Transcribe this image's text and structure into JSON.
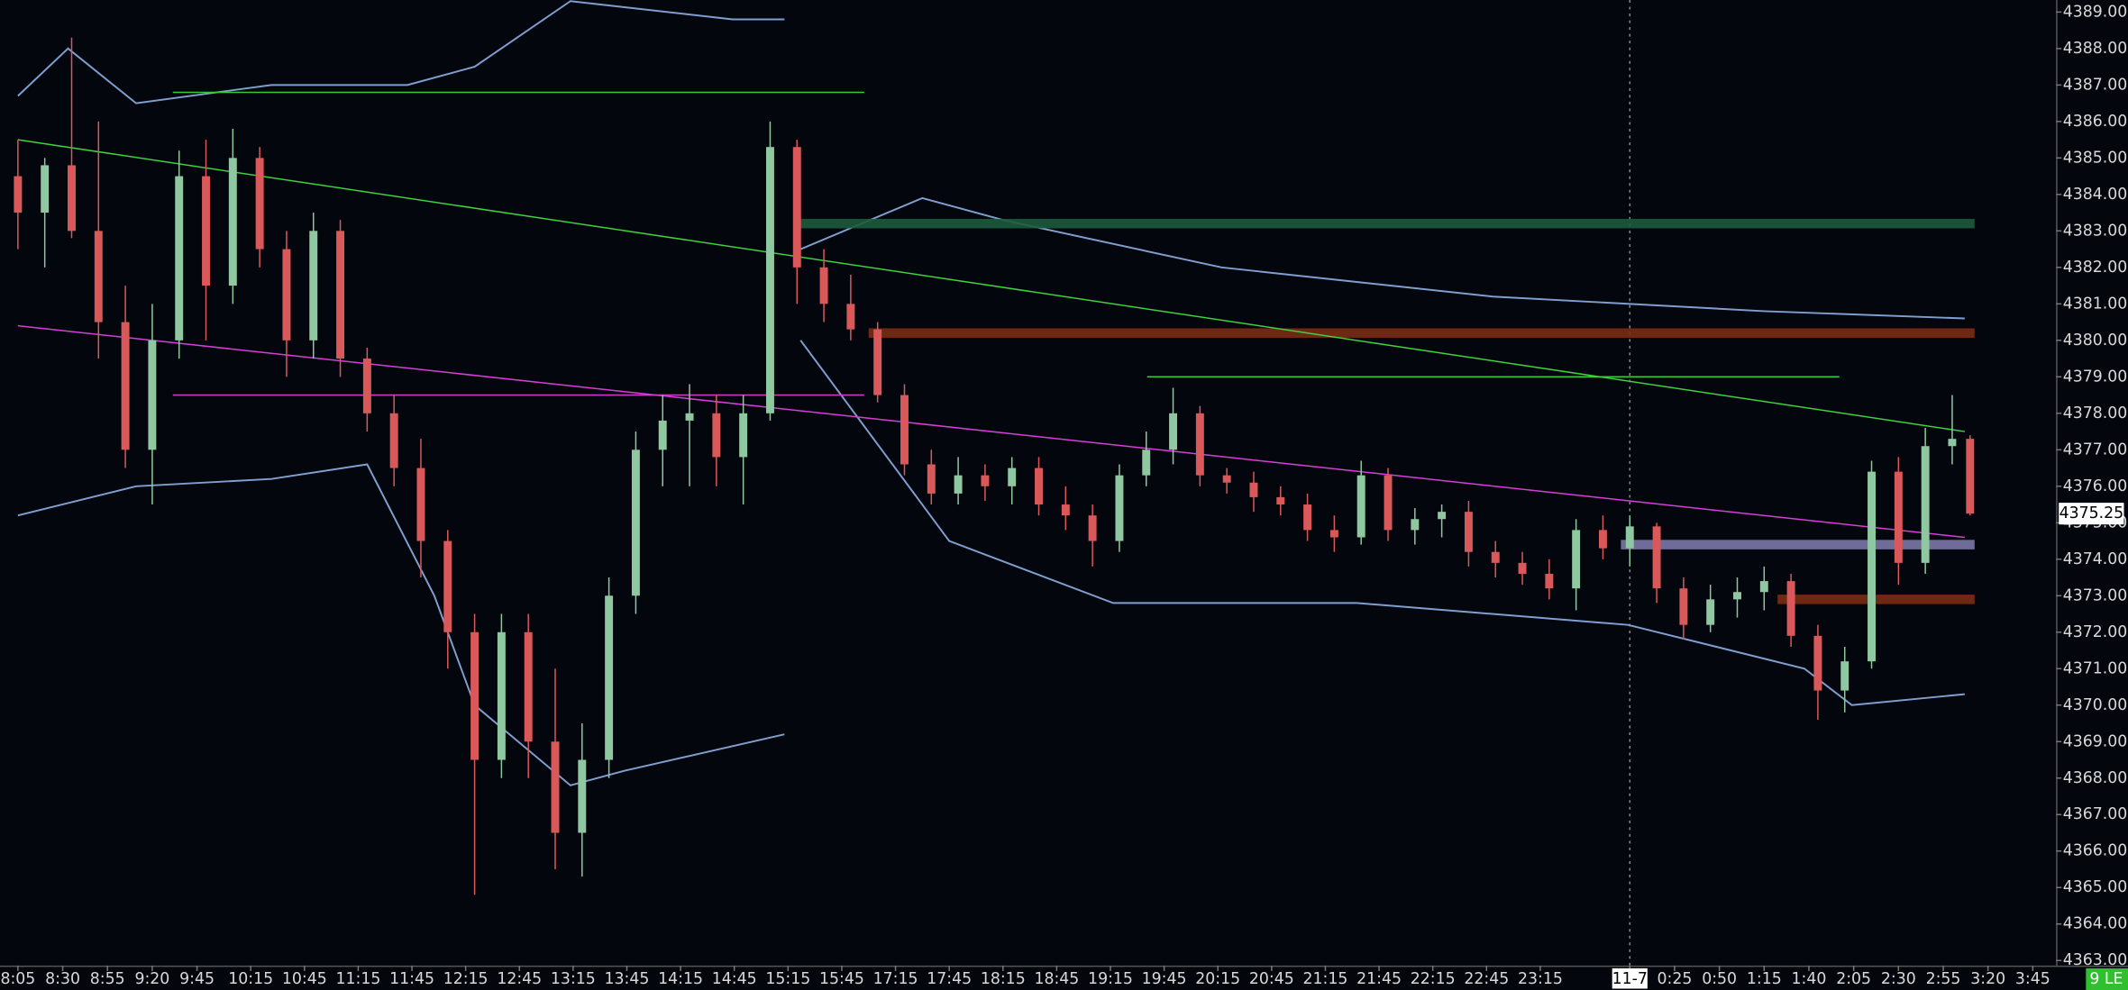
{
  "chart_data": {
    "type": "candlestick",
    "xlim": [
      -2,
      227.6
    ],
    "ylim": [
      4362.86,
      4389.33
    ],
    "xticks": [
      {
        "value": 0,
        "label": "8:05"
      },
      {
        "value": 5,
        "label": "8:30"
      },
      {
        "value": 10,
        "label": "8:55"
      },
      {
        "value": 15,
        "label": "9:20"
      },
      {
        "value": 20,
        "label": "9:45"
      },
      {
        "value": 26,
        "label": "10:15"
      },
      {
        "value": 32,
        "label": "10:45"
      },
      {
        "value": 38,
        "label": "11:15"
      },
      {
        "value": 44,
        "label": "11:45"
      },
      {
        "value": 50,
        "label": "12:15"
      },
      {
        "value": 56,
        "label": "12:45"
      },
      {
        "value": 62,
        "label": "13:15"
      },
      {
        "value": 68,
        "label": "13:45"
      },
      {
        "value": 74,
        "label": "14:15"
      },
      {
        "value": 80,
        "label": "14:45"
      },
      {
        "value": 86,
        "label": "15:15"
      },
      {
        "value": 92,
        "label": "15:45"
      },
      {
        "value": 98,
        "label": "17:15"
      },
      {
        "value": 104,
        "label": "17:45"
      },
      {
        "value": 110,
        "label": "18:15"
      },
      {
        "value": 116,
        "label": "18:45"
      },
      {
        "value": 122,
        "label": "19:15"
      },
      {
        "value": 128,
        "label": "19:45"
      },
      {
        "value": 134,
        "label": "20:15"
      },
      {
        "value": 140,
        "label": "20:45"
      },
      {
        "value": 146,
        "label": "21:15"
      },
      {
        "value": 152,
        "label": "21:45"
      },
      {
        "value": 158,
        "label": "22:15"
      },
      {
        "value": 164,
        "label": "22:45"
      },
      {
        "value": 170,
        "label": "23:15"
      },
      {
        "value": 180,
        "label": "11-7",
        "highlight": true
      },
      {
        "value": 185,
        "label": "0:25"
      },
      {
        "value": 190,
        "label": "0:50"
      },
      {
        "value": 195,
        "label": "1:15"
      },
      {
        "value": 200,
        "label": "1:40"
      },
      {
        "value": 205,
        "label": "2:05"
      },
      {
        "value": 210,
        "label": "2:30"
      },
      {
        "value": 215,
        "label": "2:55"
      },
      {
        "value": 220,
        "label": "3:20"
      },
      {
        "value": 225,
        "label": "3:45"
      }
    ],
    "yticks": [
      {
        "value": 4363,
        "label": "4363.00"
      },
      {
        "value": 4364,
        "label": "4364.00"
      },
      {
        "value": 4365,
        "label": "4365.00"
      },
      {
        "value": 4366,
        "label": "4366.00"
      },
      {
        "value": 4367,
        "label": "4367.00"
      },
      {
        "value": 4368,
        "label": "4368.00"
      },
      {
        "value": 4369,
        "label": "4369.00"
      },
      {
        "value": 4370,
        "label": "4370.00"
      },
      {
        "value": 4371,
        "label": "4371.00"
      },
      {
        "value": 4372,
        "label": "4372.00"
      },
      {
        "value": 4373,
        "label": "4373.00"
      },
      {
        "value": 4374,
        "label": "4374.00"
      },
      {
        "value": 4375,
        "label": "4375.00"
      },
      {
        "value": 4376,
        "label": "4376.00"
      },
      {
        "value": 4377,
        "label": "4377.00"
      },
      {
        "value": 4378,
        "label": "4378.00"
      },
      {
        "value": 4379,
        "label": "4379.00"
      },
      {
        "value": 4380,
        "label": "4380.00"
      },
      {
        "value": 4381,
        "label": "4381.00"
      },
      {
        "value": 4382,
        "label": "4382.00"
      },
      {
        "value": 4383,
        "label": "4383.00"
      },
      {
        "value": 4384,
        "label": "4384.00"
      },
      {
        "value": 4385,
        "label": "4385.00"
      },
      {
        "value": 4386,
        "label": "4386.00"
      },
      {
        "value": 4387,
        "label": "4387.00"
      },
      {
        "value": 4388,
        "label": "4388.00"
      },
      {
        "value": 4389,
        "label": "4389.00"
      }
    ],
    "x": [
      0,
      3,
      6,
      9,
      12,
      15,
      18,
      21,
      24,
      27,
      30,
      33,
      36,
      39,
      42,
      45,
      48,
      51,
      54,
      57,
      60,
      63,
      66,
      69,
      72,
      75,
      78,
      81,
      84,
      87,
      90,
      93,
      96,
      99,
      102,
      105,
      108,
      111,
      114,
      117,
      120,
      123,
      126,
      129,
      132,
      135,
      138,
      141,
      144,
      147,
      150,
      153,
      156,
      159,
      162,
      165,
      168,
      171,
      174,
      177,
      180,
      183,
      186,
      189,
      192,
      195,
      198,
      201,
      204,
      207,
      210,
      213,
      216,
      218
    ],
    "open": [
      4384.5,
      4383.5,
      4384.8,
      4383,
      4380.5,
      4377,
      4380,
      4384.5,
      4381.5,
      4385,
      4382.5,
      4380,
      4383,
      4379.5,
      4378,
      4376.5,
      4374.5,
      4372,
      4368.5,
      4372,
      4369,
      4366.5,
      4368.5,
      4373,
      4377,
      4377.8,
      4378,
      4376.8,
      4378,
      4385.3,
      4382,
      4381,
      4380.3,
      4378.5,
      4376.6,
      4375.8,
      4376.3,
      4376,
      4376.5,
      4375.5,
      4375.2,
      4374.5,
      4376.3,
      4377,
      4378,
      4376.3,
      4376.1,
      4375.7,
      4375.5,
      4374.8,
      4374.6,
      4376.3,
      4374.8,
      4375.1,
      4375.3,
      4374.2,
      4373.9,
      4373.6,
      4373.2,
      4374.8,
      4374.3,
      4374.9,
      4373.2,
      4372.2,
      4372.9,
      4373.1,
      4373.4,
      4371.9,
      4370.4,
      4371.2,
      4376.4,
      4373.9,
      4377.1,
      4377.3
    ],
    "high": [
      4385.5,
      4385,
      4388.3,
      4386,
      4381.5,
      4381,
      4385.2,
      4385.5,
      4385.8,
      4385.3,
      4383,
      4383.5,
      4383.3,
      4379.8,
      4378.5,
      4377.3,
      4374.8,
      4372.5,
      4372.5,
      4372.5,
      4371,
      4369.5,
      4373.5,
      4377.5,
      4378.5,
      4378.8,
      4378.5,
      4378.5,
      4386,
      4385.5,
      4382.5,
      4381.8,
      4380.5,
      4378.8,
      4377,
      4376.8,
      4376.6,
      4376.8,
      4376.8,
      4376,
      4375.5,
      4376.6,
      4377.5,
      4378.7,
      4378.2,
      4376.5,
      4376.4,
      4376,
      4375.8,
      4375.2,
      4376.7,
      4376.5,
      4375.4,
      4375.5,
      4375.6,
      4374.5,
      4374.2,
      4374,
      4375.1,
      4375.2,
      4375.2,
      4375,
      4373.5,
      4373.3,
      4373.5,
      4373.8,
      4373.6,
      4372.2,
      4371.6,
      4376.7,
      4376.8,
      4377.6,
      4378.5,
      4377.4
    ],
    "low": [
      4382.5,
      4382,
      4382.8,
      4379.5,
      4376.5,
      4375.5,
      4379.5,
      4380,
      4381,
      4382,
      4379,
      4379.5,
      4379,
      4377.5,
      4376,
      4373.5,
      4371,
      4364.8,
      4368,
      4368,
      4365.5,
      4365.3,
      4368,
      4372.5,
      4376,
      4376,
      4376,
      4375.5,
      4377.8,
      4381,
      4380.5,
      4380,
      4378.3,
      4376.3,
      4375.5,
      4375.5,
      4375.6,
      4375.5,
      4375.2,
      4374.8,
      4373.8,
      4374.2,
      4376,
      4376.6,
      4376,
      4375.8,
      4375.3,
      4375.2,
      4374.5,
      4374.2,
      4374.4,
      4374.5,
      4374.4,
      4374.6,
      4373.8,
      4373.5,
      4373.3,
      4372.9,
      4372.6,
      4374,
      4373.8,
      4372.8,
      4371.8,
      4372,
      4372.4,
      4372.6,
      4371.6,
      4369.6,
      4369.8,
      4371,
      4373.3,
      4373.6,
      4376.6,
      4375.2
    ],
    "close": [
      4383.5,
      4384.8,
      4383,
      4380.5,
      4377,
      4380,
      4384.5,
      4381.5,
      4385,
      4382.5,
      4380,
      4383,
      4379.5,
      4378,
      4376.5,
      4374.5,
      4372,
      4368.5,
      4372,
      4369,
      4366.5,
      4368.5,
      4373,
      4377,
      4377.8,
      4378,
      4376.8,
      4378,
      4385.3,
      4382,
      4381,
      4380.3,
      4378.5,
      4376.6,
      4375.8,
      4376.3,
      4376,
      4376.5,
      4375.5,
      4375.2,
      4374.5,
      4376.3,
      4377,
      4378,
      4376.3,
      4376.1,
      4375.7,
      4375.5,
      4374.8,
      4374.6,
      4376.3,
      4374.8,
      4375.1,
      4375.3,
      4374.2,
      4373.9,
      4373.6,
      4373.2,
      4374.8,
      4374.3,
      4374.9,
      4373.2,
      4372.2,
      4372.9,
      4373.1,
      4373.4,
      4371.9,
      4370.4,
      4371.2,
      4376.4,
      4373.9,
      4377.1,
      4377.3,
      4375.25
    ],
    "up_color": "#8fc7a1",
    "down_color": "#d9585a",
    "bands": [
      {
        "color": "#7f9fd0",
        "x": [
          0,
          5.6,
          13.2,
          28.3,
          43.5,
          51,
          61.7,
          79.8,
          85.6,
          86,
          87.4,
          101,
          110,
          134.4,
          164.7,
          195,
          217.4
        ],
        "values": [
          4386.7,
          4388,
          4386.5,
          4387,
          4387,
          4387.5,
          4389.3,
          4388.8,
          4388.8,
          null,
          4382.5,
          4383.9,
          4383.3,
          4382,
          4381.2,
          4380.8,
          4380.6
        ]
      },
      {
        "color": "#7f9fd0",
        "x": [
          0,
          13.2,
          28.3,
          39,
          46.5,
          51,
          61.7,
          67.7,
          85.6,
          86,
          87.4,
          104,
          122.3,
          149.5,
          179.8,
          199.5,
          204.8,
          217.4
        ],
        "values": [
          4375.2,
          4376,
          4376.2,
          4376.6,
          4373,
          4370,
          4367.8,
          4368.2,
          4369.2,
          null,
          4380,
          4374.5,
          4372.8,
          4372.8,
          4372.2,
          4371,
          4370,
          4370.3
        ]
      }
    ],
    "trendlines": [
      {
        "color": "#3fd13f",
        "x": [
          0,
          217.4
        ],
        "values": [
          4385.5,
          4377.5
        ]
      },
      {
        "color": "#d63fd6",
        "x": [
          0,
          217.4
        ],
        "values": [
          4380.4,
          4374.6
        ]
      }
    ],
    "levels": [
      {
        "type": "zone",
        "value": 4383.2,
        "x": [
          86.7,
          218.5
        ],
        "color": "#1d5b3c"
      },
      {
        "type": "zone",
        "value": 4380.2,
        "x": [
          95,
          218.5
        ],
        "color": "#7b2c14"
      },
      {
        "type": "zone",
        "value": 4374.4,
        "x": [
          179,
          218.5
        ],
        "color": "#7c78a8"
      },
      {
        "type": "zone",
        "value": 4372.9,
        "x": [
          196.5,
          218.5
        ],
        "color": "#7b2c14"
      },
      {
        "type": "line",
        "value": 4386.8,
        "x": [
          17.3,
          94.5
        ],
        "color": "#39c839"
      },
      {
        "type": "line",
        "value": 4378.5,
        "x": [
          17.3,
          94.5
        ],
        "color": "#c83cc8"
      },
      {
        "type": "line",
        "value": 4379,
        "x": [
          126.1,
          203.4
        ],
        "color": "#39c839"
      }
    ],
    "last_price": 4375.25,
    "badge": "9 LE"
  }
}
